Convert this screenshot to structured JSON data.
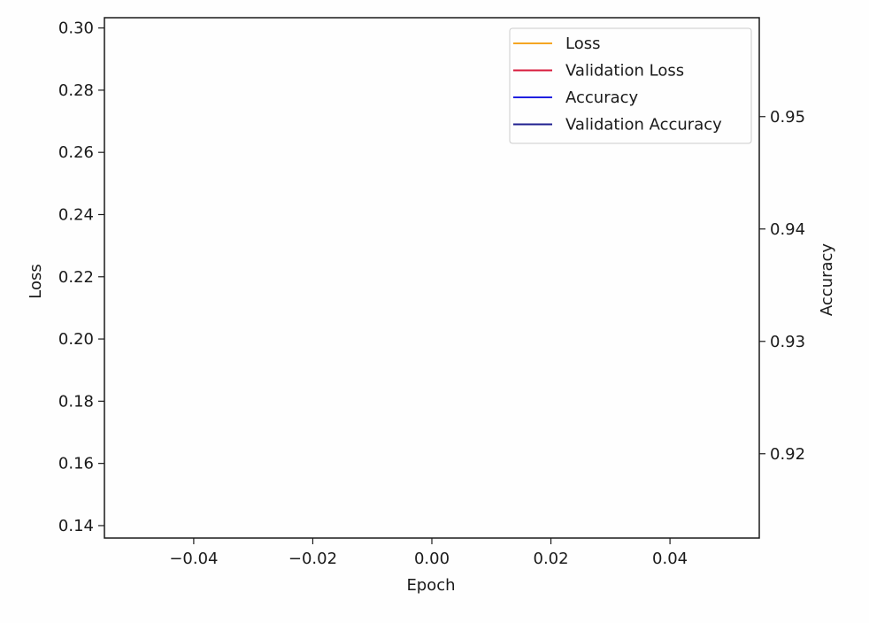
{
  "chart_data": {
    "type": "line",
    "title": "",
    "xlabel": "Epoch",
    "ylabel": "Loss",
    "y2label": "Accuracy",
    "xlim": [
      -0.055,
      0.055
    ],
    "ylim": [
      0.136,
      0.3033
    ],
    "y2lim": [
      0.9125,
      0.9588
    ],
    "x_ticks": [
      -0.04,
      -0.02,
      0.0,
      0.02,
      0.04
    ],
    "x_tick_labels": [
      "−0.04",
      "−0.02",
      "0.00",
      "0.02",
      "0.04"
    ],
    "y_ticks": [
      0.14,
      0.16,
      0.18,
      0.2,
      0.22,
      0.24,
      0.26,
      0.28,
      0.3
    ],
    "y_tick_labels": [
      "0.14",
      "0.16",
      "0.18",
      "0.20",
      "0.22",
      "0.24",
      "0.26",
      "0.28",
      "0.30"
    ],
    "y2_ticks": [
      0.92,
      0.93,
      0.94,
      0.95
    ],
    "y2_tick_labels": [
      "0.92",
      "0.93",
      "0.94",
      "0.95"
    ],
    "grid": false,
    "legend_position": "top-right",
    "series": [
      {
        "name": "Loss",
        "axis": "left",
        "color": "#f5a623",
        "x": [],
        "y": []
      },
      {
        "name": "Validation Loss",
        "axis": "left",
        "color": "#d81b3c",
        "x": [],
        "y": []
      },
      {
        "name": "Accuracy",
        "axis": "right",
        "color": "#2020e0",
        "x": [],
        "y": []
      },
      {
        "name": "Validation Accuracy",
        "axis": "right",
        "color": "#202090",
        "x": [],
        "y": []
      }
    ]
  }
}
